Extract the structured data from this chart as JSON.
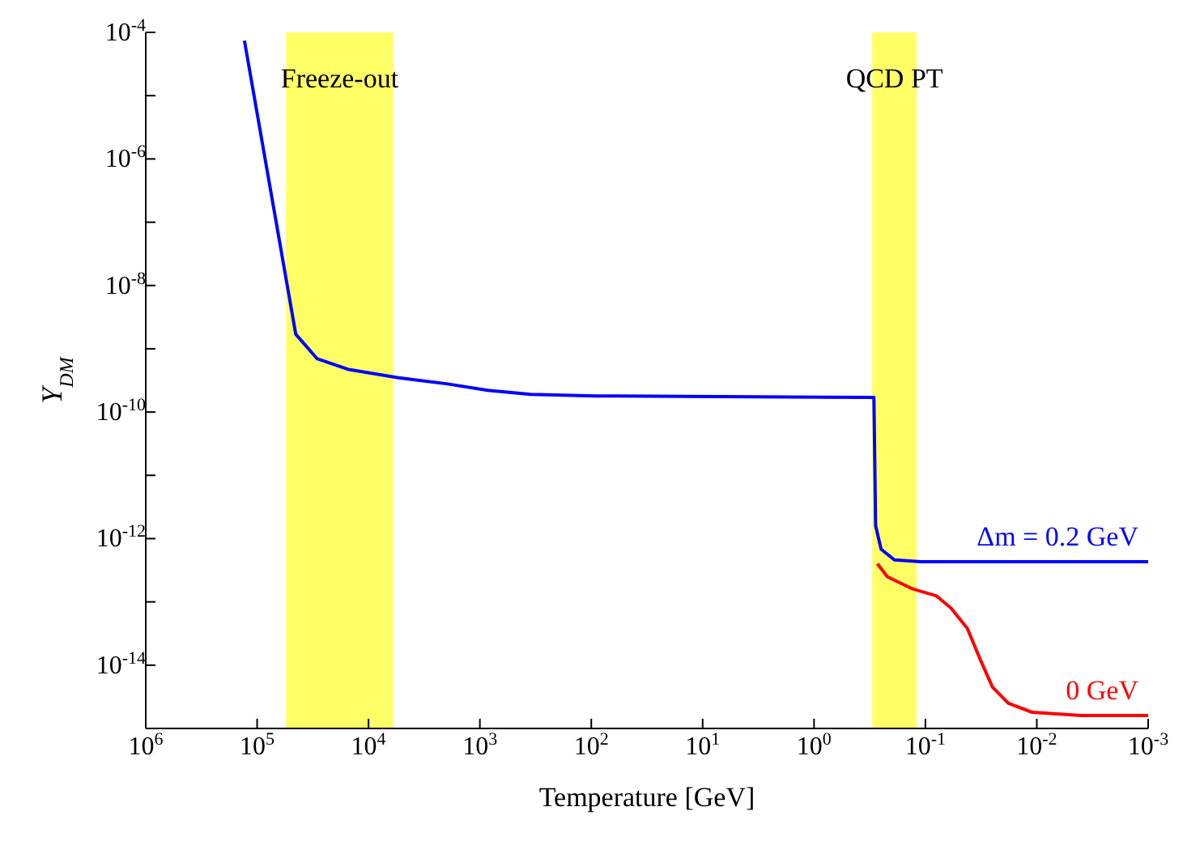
{
  "chart_data": {
    "type": "line",
    "xlabel": "Temperature [GeV]",
    "ylabel": "Y$_{DM}$",
    "log": "xy",
    "grid": false,
    "legend": false,
    "marker": "none",
    "line_style": "solid",
    "xlim": [
      1000000,
      0.001
    ],
    "xticks": [
      {
        "value": 1000000,
        "label": "10$^{6}$"
      },
      {
        "value": 100000,
        "label": "10$^{5}$"
      },
      {
        "value": 10000,
        "label": "10$^{4}$"
      },
      {
        "value": 1000,
        "label": "10$^{3}$"
      },
      {
        "value": 100,
        "label": "10$^{2}$"
      },
      {
        "value": 10,
        "label": "10$^{1}$"
      },
      {
        "value": 1,
        "label": "10$^{0}$"
      },
      {
        "value": 0.1,
        "label": "10$^{-1}$"
      },
      {
        "value": 0.01,
        "label": "10$^{-2}$"
      },
      {
        "value": 0.001,
        "label": "10$^{-3}$"
      }
    ],
    "ylim": [
      1e-15,
      0.0001
    ],
    "yticks": [
      {
        "value": 0.0001,
        "label": "10$^{-4}$"
      },
      {
        "value": 1e-05,
        "label": null
      },
      {
        "value": 1e-06,
        "label": "10$^{-6}$"
      },
      {
        "value": 1e-07,
        "label": null
      },
      {
        "value": 1e-08,
        "label": "10$^{-8}$"
      },
      {
        "value": 1e-09,
        "label": null
      },
      {
        "value": 1e-10,
        "label": "10$^{-10}$"
      },
      {
        "value": 1e-11,
        "label": null
      },
      {
        "value": 1e-12,
        "label": "10$^{-12}$"
      },
      {
        "value": 1e-13,
        "label": null
      },
      {
        "value": 1e-14,
        "label": "10$^{-14}$"
      },
      {
        "value": 1e-15,
        "label": null
      }
    ],
    "bands": [
      {
        "axis": "x",
        "from": 55000,
        "to": 6000,
        "label": "Freeze-out",
        "color": "#ffff66"
      },
      {
        "axis": "x",
        "from": 0.3,
        "to": 0.12,
        "label": "QCD PT",
        "color": "#ffff66"
      }
    ],
    "series": [
      {
        "name": "0 GeV",
        "color": "#ff0000",
        "x": [
          0.27,
          0.22,
          0.13,
          0.08,
          0.059,
          0.042,
          0.032,
          0.025,
          0.018,
          0.011,
          0.004,
          0.001
        ],
        "values": [
          4e-13,
          2.5e-13,
          1.6e-13,
          1.25e-13,
          8e-14,
          3.8e-14,
          1.2e-14,
          4.5e-15,
          2.5e-15,
          1.8e-15,
          1.6e-15,
          1.6e-15
        ]
      },
      {
        "name": "Δm = 0.2 GeV",
        "color": "#0000ff",
        "x": [
          130000,
          45000,
          29000,
          15000,
          5500,
          2000,
          850,
          350,
          90,
          0.29,
          0.28,
          0.25,
          0.19,
          0.11,
          0.01,
          0.001
        ],
        "values": [
          7.4e-05,
          1.7e-09,
          7e-10,
          4.7e-10,
          3.5e-10,
          2.8e-10,
          2.2e-10,
          1.9e-10,
          1.8e-10,
          1.7e-10,
          1.6e-12,
          6.8e-13,
          4.6e-13,
          4.3e-13,
          4.3e-13,
          4.3e-13
        ]
      }
    ]
  }
}
